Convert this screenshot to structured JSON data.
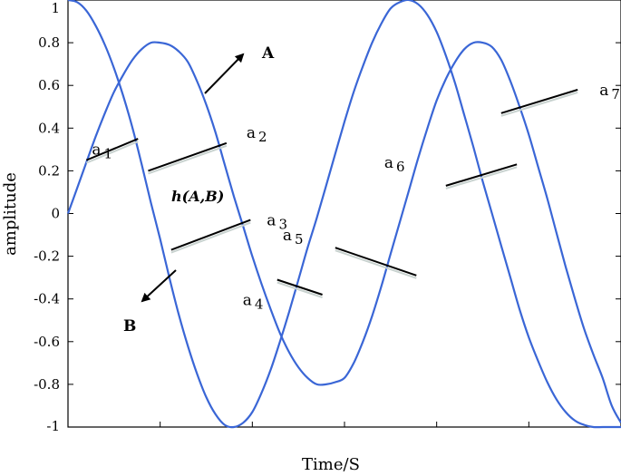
{
  "chart_data": {
    "type": "line",
    "xlabel": "Time/S",
    "ylabel": "amplitude",
    "xlim": [
      0,
      6
    ],
    "ylim": [
      -1,
      1
    ],
    "grid": false,
    "y_ticks": [
      {
        "value": 1,
        "label": "1"
      },
      {
        "value": 0.8,
        "label": "0.8"
      },
      {
        "value": 0.6,
        "label": "0.6"
      },
      {
        "value": 0.4,
        "label": "0.4"
      },
      {
        "value": 0.2,
        "label": "0.2"
      },
      {
        "value": 0,
        "label": "0"
      },
      {
        "value": -0.2,
        "label": "-0.2"
      },
      {
        "value": -0.4,
        "label": "-0.4"
      },
      {
        "value": -0.6,
        "label": "-0.6"
      },
      {
        "value": -0.8,
        "label": "-0.8"
      },
      {
        "value": -1,
        "label": "-1"
      }
    ],
    "x_ticks": [
      1,
      2,
      3,
      4,
      5
    ],
    "curve_color": "#3a66d6",
    "series": [
      {
        "id": "A",
        "x": [
          0,
          0.1,
          0.2,
          0.3,
          0.4,
          0.5,
          0.6,
          0.7,
          0.8,
          0.9,
          1,
          1.1,
          1.2,
          1.3,
          1.4,
          1.5,
          1.6,
          1.7,
          1.8,
          1.9,
          2,
          2.1,
          2.2,
          2.3,
          2.4,
          2.5,
          2.6,
          2.7,
          2.8,
          2.9,
          3,
          3.1,
          3.2,
          3.3,
          3.4,
          3.5,
          3.6,
          3.7,
          3.8,
          3.9,
          4,
          4.1,
          4.2,
          4.3,
          4.4,
          4.5,
          4.6,
          4.7,
          4.8,
          4.9,
          5,
          5.1,
          5.2,
          5.3,
          5.4,
          5.5,
          5.6,
          5.7,
          5.8,
          5.9,
          6
        ],
        "y": [
          0,
          0.12,
          0.24,
          0.36,
          0.47,
          0.57,
          0.65,
          0.72,
          0.77,
          0.8,
          0.8,
          0.79,
          0.76,
          0.71,
          0.62,
          0.51,
          0.38,
          0.23,
          0.08,
          -0.06,
          -0.2,
          -0.33,
          -0.45,
          -0.56,
          -0.65,
          -0.72,
          -0.77,
          -0.8,
          -0.8,
          -0.79,
          -0.77,
          -0.7,
          -0.6,
          -0.48,
          -0.34,
          -0.19,
          -0.04,
          0.11,
          0.26,
          0.4,
          0.53,
          0.63,
          0.71,
          0.77,
          0.8,
          0.8,
          0.78,
          0.72,
          0.62,
          0.5,
          0.37,
          0.22,
          0.07,
          -0.09,
          -0.25,
          -0.4,
          -0.54,
          -0.66,
          -0.77,
          -0.9,
          -0.98
        ]
      },
      {
        "id": "B",
        "x": [
          0,
          0.1,
          0.2,
          0.3,
          0.4,
          0.5,
          0.6,
          0.7,
          0.8,
          0.9,
          1,
          1.1,
          1.2,
          1.3,
          1.4,
          1.5,
          1.6,
          1.7,
          1.8,
          1.9,
          2,
          2.1,
          2.2,
          2.3,
          2.4,
          2.5,
          2.6,
          2.7,
          2.8,
          2.9,
          3,
          3.1,
          3.2,
          3.3,
          3.4,
          3.5,
          3.6,
          3.7,
          3.8,
          3.9,
          4,
          4.1,
          4.2,
          4.3,
          4.4,
          4.5,
          4.6,
          4.7,
          4.8,
          4.9,
          5,
          5.1,
          5.2,
          5.3,
          5.4,
          5.5,
          5.6,
          5.7,
          5.8,
          5.9,
          6
        ],
        "y": [
          1,
          0.99,
          0.95,
          0.88,
          0.79,
          0.68,
          0.55,
          0.4,
          0.23,
          0.05,
          -0.12,
          -0.3,
          -0.47,
          -0.62,
          -0.75,
          -0.86,
          -0.94,
          -0.99,
          -1,
          -0.98,
          -0.93,
          -0.84,
          -0.73,
          -0.6,
          -0.46,
          -0.31,
          -0.16,
          -0.02,
          0.13,
          0.28,
          0.43,
          0.57,
          0.69,
          0.8,
          0.89,
          0.96,
          0.99,
          1,
          0.98,
          0.93,
          0.85,
          0.74,
          0.61,
          0.46,
          0.31,
          0.15,
          0,
          -0.15,
          -0.3,
          -0.45,
          -0.58,
          -0.69,
          -0.79,
          -0.87,
          -0.93,
          -0.97,
          -0.99,
          -1,
          -1,
          -1,
          -1
        ]
      }
    ],
    "segments": [
      {
        "label_main": "a",
        "label_sub": "1",
        "x1": 0.2,
        "y1": 0.25,
        "x2": 0.76,
        "y2": 0.35
      },
      {
        "label_main": "a",
        "label_sub": "2",
        "x1": 0.87,
        "y1": 0.2,
        "x2": 1.72,
        "y2": 0.33
      },
      {
        "label_main": "a",
        "label_sub": "3",
        "x1": 1.12,
        "y1": -0.17,
        "x2": 1.98,
        "y2": -0.03
      },
      {
        "label_main": "a",
        "label_sub": "4",
        "x1": 2.27,
        "y1": -0.31,
        "x2": 2.76,
        "y2": -0.38
      },
      {
        "label_main": "a",
        "label_sub": "5",
        "x1": 2.9,
        "y1": -0.16,
        "x2": 3.78,
        "y2": -0.29
      },
      {
        "label_main": "a",
        "label_sub": "6",
        "x1": 4.1,
        "y1": 0.13,
        "x2": 4.87,
        "y2": 0.23
      },
      {
        "label_main": "a",
        "label_sub": "7",
        "x1": 4.7,
        "y1": 0.47,
        "x2": 5.53,
        "y2": 0.58
      }
    ],
    "annotations": [
      {
        "text": "A",
        "role": "arrow-A"
      },
      {
        "text": "B",
        "role": "arrow-B"
      },
      {
        "text": "h(A,B)",
        "role": "distance-label"
      }
    ]
  }
}
